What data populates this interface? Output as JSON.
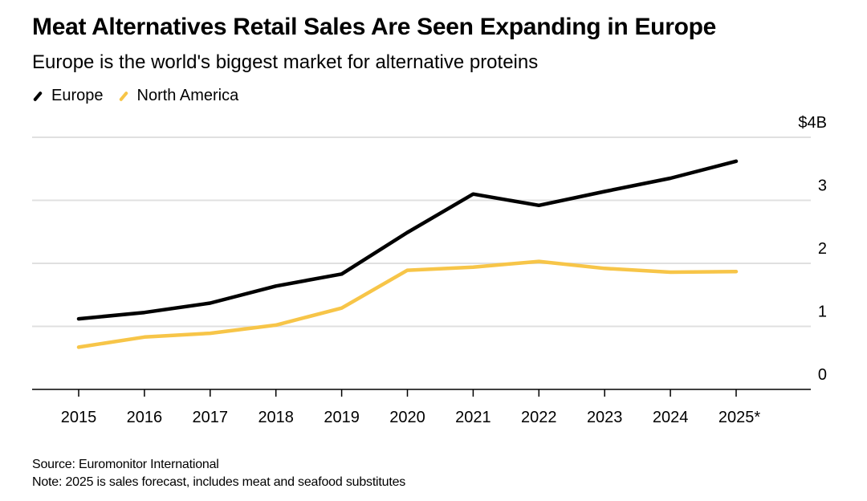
{
  "header": {
    "title": "Meat Alternatives Retail Sales Are Seen Expanding in Europe",
    "subtitle": "Europe is the world's biggest market for alternative proteins"
  },
  "legend": [
    {
      "label": "Europe",
      "color": "#000000"
    },
    {
      "label": "North America",
      "color": "#f7c548"
    }
  ],
  "footer": {
    "source": "Source: Euromonitor International",
    "note": "Note: 2025 is sales forecast, includes meat and seafood substitutes"
  },
  "chart_data": {
    "type": "line",
    "title": "Meat Alternatives Retail Sales Are Seen Expanding in Europe",
    "subtitle": "Europe is the world's biggest market for alternative proteins",
    "xlabel": "",
    "ylabel": "",
    "categories": [
      "2015",
      "2016",
      "2017",
      "2018",
      "2019",
      "2020",
      "2021",
      "2022",
      "2023",
      "2024",
      "2025*"
    ],
    "series": [
      {
        "name": "Europe",
        "color": "#000000",
        "values": [
          1.12,
          1.22,
          1.37,
          1.64,
          1.83,
          2.49,
          3.1,
          2.92,
          3.14,
          3.35,
          3.62
        ]
      },
      {
        "name": "North America",
        "color": "#f7c548",
        "values": [
          0.67,
          0.83,
          0.89,
          1.02,
          1.29,
          1.89,
          1.94,
          2.03,
          1.92,
          1.86,
          1.87
        ]
      }
    ],
    "ylim": [
      0,
      4
    ],
    "yticks": [
      0,
      1,
      2,
      3,
      4
    ],
    "ytick_labels": [
      "0",
      "1",
      "2",
      "3",
      "$4B"
    ],
    "y_axis_side": "right",
    "grid": true,
    "legend_position": "top-left",
    "gridline_color": "#e0e0e0",
    "axis_color": "#000000"
  }
}
